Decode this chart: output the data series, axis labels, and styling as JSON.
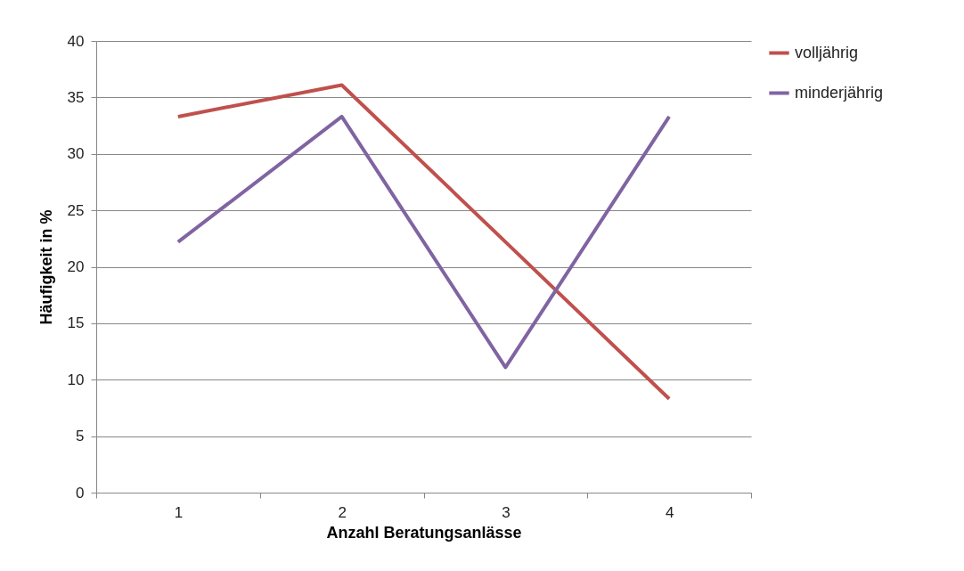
{
  "chart_data": {
    "type": "line",
    "xlabel": "Anzahl Beratungsanlässe",
    "ylabel": "Häufigkeit in %",
    "categories": [
      "1",
      "2",
      "3",
      "4"
    ],
    "ylim": [
      0,
      40
    ],
    "yticks": [
      0,
      5,
      10,
      15,
      20,
      25,
      30,
      35,
      40
    ],
    "grid": "y",
    "legend": "right",
    "marker": "none",
    "line_style": "solid",
    "series": [
      {
        "name": "volljährig",
        "color": "#c0504d",
        "values": [
          33.3,
          36.1,
          22.2,
          8.3
        ]
      },
      {
        "name": "minderjährig",
        "color": "#8064a2",
        "values": [
          22.2,
          33.3,
          11.1,
          33.3
        ]
      }
    ]
  }
}
